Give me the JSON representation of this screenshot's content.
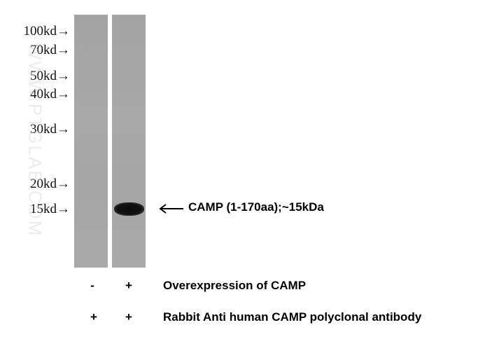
{
  "markers": [
    "100kd→",
    "70kd→",
    "50kd→",
    "40kd→",
    "30kd→",
    "20kd→",
    "15kd→"
  ],
  "watermark": "WWW.PTGLAB.COM",
  "band_label": "CAMP (1-170aa);~15kDa",
  "conditions": [
    {
      "label": "Overexpression of  CAMP",
      "lane1": "-",
      "lane2": "+"
    },
    {
      "label": "Rabbit Anti human CAMP polyclonal antibody",
      "lane1": "+",
      "lane2": "+"
    }
  ]
}
